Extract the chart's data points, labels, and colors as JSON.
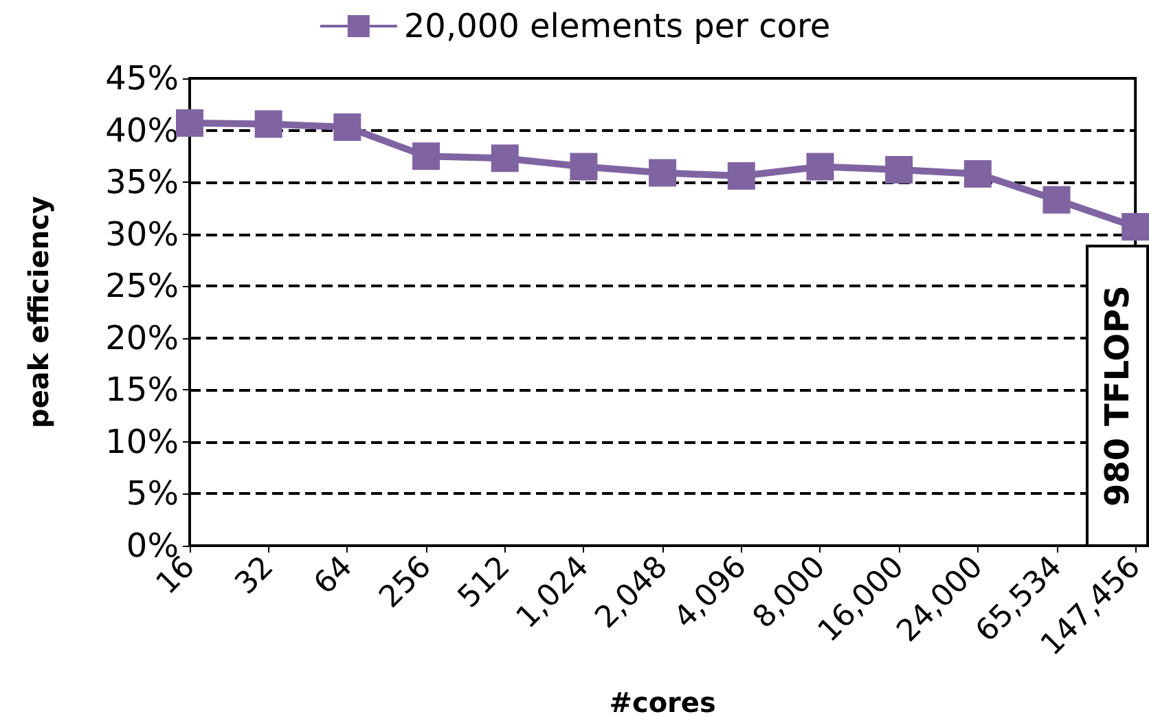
{
  "chart_data": {
    "type": "line",
    "xlabel": "#cores",
    "ylabel": "peak efficiency",
    "categories": [
      "16",
      "32",
      "64",
      "256",
      "512",
      "1,024",
      "2,048",
      "4,096",
      "8,000",
      "16,000",
      "24,000",
      "65,534",
      "147,456"
    ],
    "series": [
      {
        "name": "20,000 elements per core",
        "color": "#8064a2",
        "values": [
          40.7,
          40.6,
          40.3,
          37.5,
          37.3,
          36.5,
          35.9,
          35.6,
          36.5,
          36.2,
          35.8,
          33.3,
          30.7
        ]
      }
    ],
    "ylim": [
      0,
      45
    ],
    "yticks": [
      {
        "value": 0,
        "label": "0%"
      },
      {
        "value": 5,
        "label": "5%"
      },
      {
        "value": 10,
        "label": "10%"
      },
      {
        "value": 15,
        "label": "15%"
      },
      {
        "value": 20,
        "label": "20%"
      },
      {
        "value": 25,
        "label": "25%"
      },
      {
        "value": 30,
        "label": "30%"
      },
      {
        "value": 35,
        "label": "35%"
      },
      {
        "value": 40,
        "label": "40%"
      },
      {
        "value": 45,
        "label": "45%"
      }
    ],
    "annotations": [
      {
        "text": "980 TFLOPS",
        "x": "147,456",
        "y": 30.7
      }
    ],
    "grid": "y",
    "legend": "top",
    "marker": "square",
    "line_style": "solid"
  }
}
